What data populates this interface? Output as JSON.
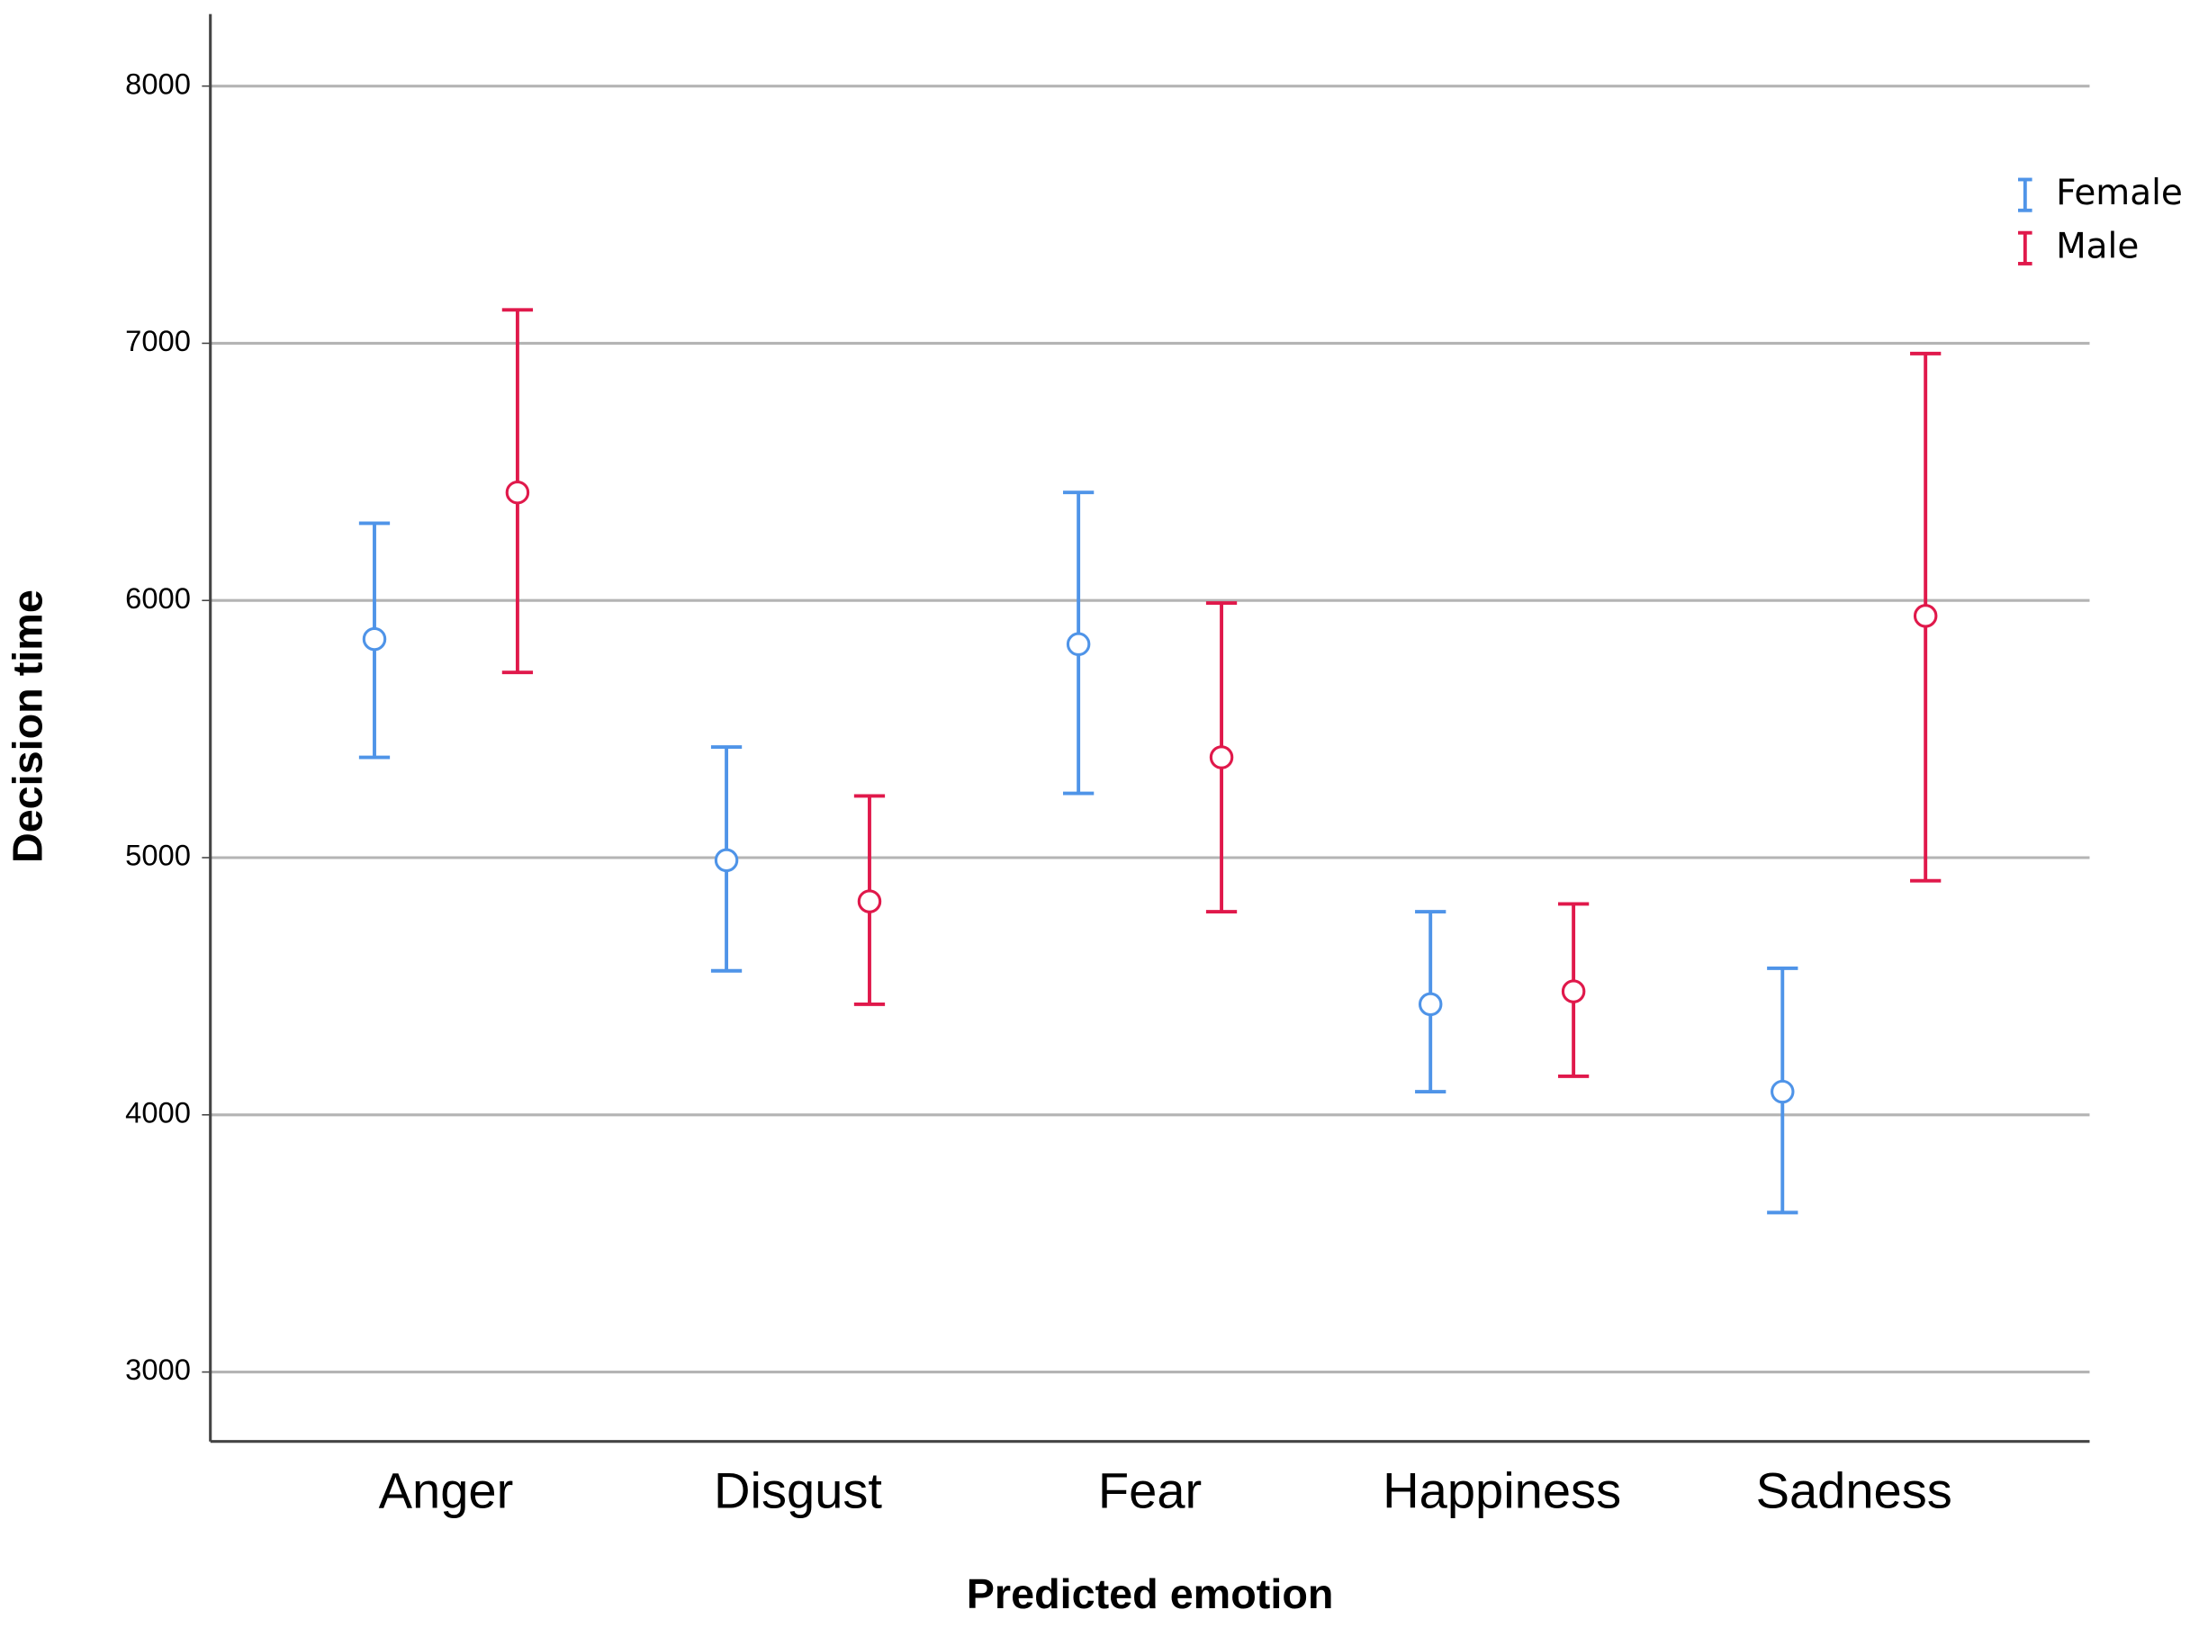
{
  "chart_data": {
    "type": "errorbar",
    "x_label": "Predicted emotion",
    "y_label": "Decision time",
    "categories": [
      "Anger",
      "Disgust",
      "Fear",
      "Happiness",
      "Sadness"
    ],
    "series": [
      {
        "name": "Female",
        "color": "#4f94e8",
        "values": [
          5850,
          4990,
          5830,
          4430,
          4090
        ],
        "lower": [
          5390,
          4560,
          5250,
          4090,
          3620
        ],
        "upper": [
          6300,
          5430,
          6420,
          4790,
          4570
        ]
      },
      {
        "name": "Male",
        "color": "#e0194b",
        "values": [
          6420,
          4830,
          5390,
          4480,
          5940
        ],
        "lower": [
          5720,
          4430,
          4790,
          4150,
          4910
        ],
        "upper": [
          7130,
          5240,
          5990,
          4820,
          6960
        ]
      }
    ],
    "ylim": [
      2730,
      8280
    ],
    "yticks": [
      3000,
      4000,
      5000,
      6000,
      7000,
      8000
    ],
    "grid": true,
    "legend": "upper right"
  }
}
